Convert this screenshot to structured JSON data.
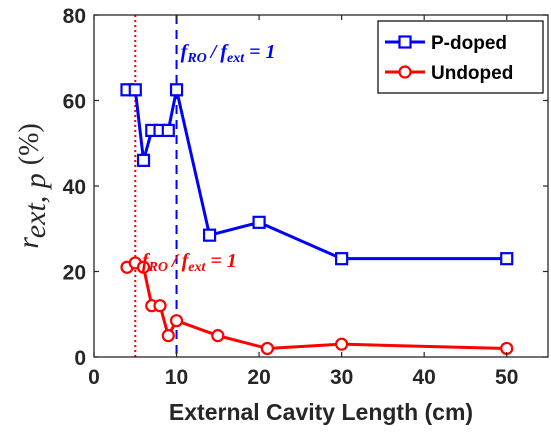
{
  "chart_data": {
    "type": "line",
    "xlabel": "External Cavity Length (cm)",
    "ylabel": {
      "symbol": "r",
      "subscript": "ext, p",
      "unit": "(%)"
    },
    "xlim": [
      0,
      55
    ],
    "ylim": [
      0,
      80
    ],
    "xticks": [
      0,
      10,
      20,
      30,
      40,
      50
    ],
    "yticks": [
      0,
      20,
      40,
      60,
      80
    ],
    "xtick_labels": [
      "0",
      "10",
      "20",
      "30",
      "40",
      "50"
    ],
    "ytick_labels": [
      "0",
      "20",
      "40",
      "60",
      "80"
    ],
    "grid": false,
    "legend_position": "top-right",
    "series": [
      {
        "name": "P-doped",
        "color": "#0000ff",
        "marker": "square",
        "x": [
          4,
          5,
          6,
          7,
          8,
          9,
          10,
          14,
          20,
          30,
          50
        ],
        "y": [
          62.5,
          62.5,
          46,
          53,
          53,
          53,
          62.5,
          28.5,
          31.5,
          23,
          23
        ]
      },
      {
        "name": "Undoped",
        "color": "#ff0000",
        "marker": "circle",
        "x": [
          4,
          5,
          6,
          7,
          8,
          9,
          10,
          15,
          21,
          30,
          50
        ],
        "y": [
          21,
          22,
          21,
          12,
          12,
          5,
          8.5,
          5,
          2,
          3,
          2
        ]
      }
    ],
    "reference_lines": [
      {
        "x": 10,
        "color": "#0000ff",
        "style": "dashed"
      },
      {
        "x": 5,
        "color": "#ff0000",
        "style": "dotted"
      }
    ],
    "annotations": [
      {
        "id": "blue",
        "color": "#0000ff",
        "at": [
          10.5,
          70
        ],
        "f1": "f",
        "s1": "RO",
        "slash": "/",
        "f2": "f",
        "s2": "ext",
        "eq": "= 1"
      },
      {
        "id": "red",
        "color": "#ff0000",
        "at": [
          5.8,
          21
        ],
        "f1": "f",
        "s1": "RO",
        "slash": "/",
        "f2": "f",
        "s2": "ext",
        "eq": "= 1"
      }
    ]
  }
}
